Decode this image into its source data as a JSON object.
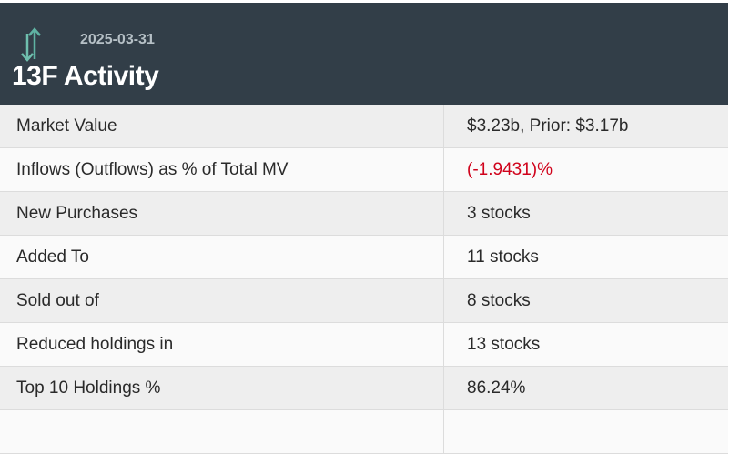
{
  "header": {
    "date": "2025-03-31",
    "title": "13F Activity",
    "icon": "up-down-arrows-icon",
    "icon_colors": [
      "#5fb3a3",
      "#8fcfc0"
    ]
  },
  "rows": [
    {
      "label": "Market Value",
      "value": "$3.23b, Prior: $3.17b"
    },
    {
      "label": "Inflows (Outflows) as % of Total MV",
      "value": "(-1.9431)%",
      "color": "#d0021b"
    },
    {
      "label": "New Purchases",
      "value": "3 stocks"
    },
    {
      "label": "Added To",
      "value": "11 stocks"
    },
    {
      "label": "Sold out of",
      "value": "8 stocks"
    },
    {
      "label": "Reduced holdings in",
      "value": "13 stocks"
    },
    {
      "label": "Top 10 Holdings %",
      "value": "86.24%"
    },
    {
      "label": "",
      "value": ""
    }
  ]
}
